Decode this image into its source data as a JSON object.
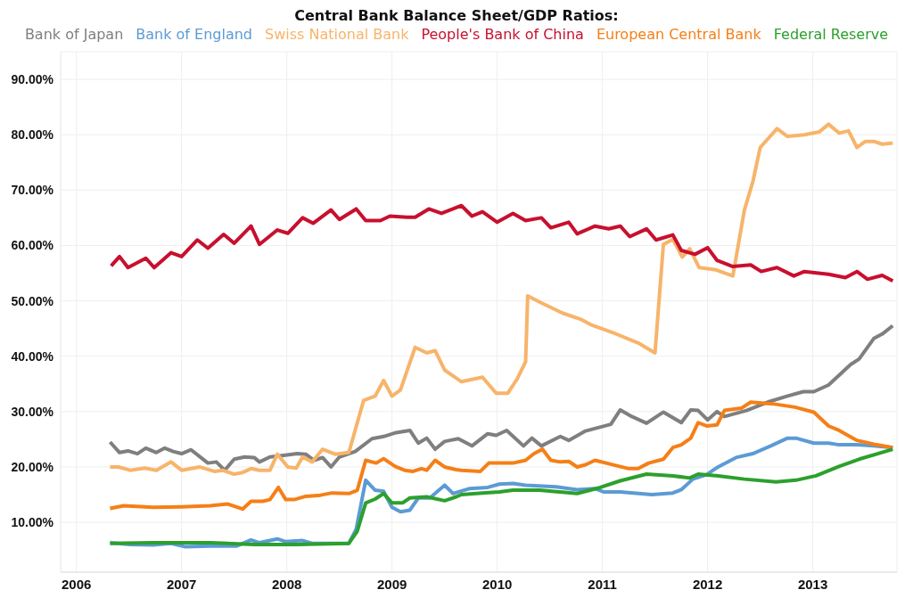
{
  "chart_data": {
    "type": "line",
    "title": "Central Bank Balance Sheet/GDP Ratios:",
    "legend": "top",
    "grid": true,
    "marker": "none",
    "line_style": "solid",
    "xlim": [
      2005.85,
      2013.8
    ],
    "xticks": [
      2006,
      2007,
      2008,
      2009,
      2010,
      2011,
      2012,
      2013
    ],
    "ylim": [
      1,
      95
    ],
    "yticks": [
      {
        "value": 10,
        "label": "10.00%"
      },
      {
        "value": 20,
        "label": "20.00%"
      },
      {
        "value": 30,
        "label": "30.00%"
      },
      {
        "value": 40,
        "label": "40.00%"
      },
      {
        "value": 50,
        "label": "50.00%"
      },
      {
        "value": 60,
        "label": "60.00%"
      },
      {
        "value": 70,
        "label": "70.00%"
      },
      {
        "value": 80,
        "label": "80.00%"
      },
      {
        "value": 90,
        "label": "90.00%"
      }
    ],
    "series": [
      {
        "name": "Bank of Japan",
        "color": "#7f7f7f",
        "x": [
          2006.32,
          2006.41,
          2006.49,
          2006.58,
          2006.66,
          2006.76,
          2006.84,
          2006.92,
          2007.0,
          2007.09,
          2007.25,
          2007.33,
          2007.41,
          2007.5,
          2007.6,
          2007.69,
          2007.74,
          2007.84,
          2007.97,
          2008.1,
          2008.18,
          2008.26,
          2008.34,
          2008.42,
          2008.5,
          2008.65,
          2008.81,
          2008.92,
          2009.04,
          2009.17,
          2009.25,
          2009.33,
          2009.41,
          2009.5,
          2009.63,
          2009.76,
          2009.91,
          2009.99,
          2010.09,
          2010.25,
          2010.33,
          2010.42,
          2010.6,
          2010.68,
          2010.84,
          2011.08,
          2011.17,
          2011.28,
          2011.42,
          2011.58,
          2011.75,
          2011.84,
          2011.91,
          2012.0,
          2012.09,
          2012.16,
          2012.37,
          2012.57,
          2012.76,
          2012.91,
          2013.01,
          2013.15,
          2013.36,
          2013.44,
          2013.58,
          2013.66,
          2013.76
        ],
        "values": [
          24.5,
          22.6,
          22.9,
          22.4,
          23.4,
          22.6,
          23.4,
          22.8,
          22.4,
          23.1,
          20.7,
          20.9,
          19.4,
          21.4,
          21.8,
          21.7,
          20.9,
          21.8,
          22.1,
          22.4,
          22.3,
          21.2,
          21.7,
          20.0,
          21.8,
          22.8,
          25.1,
          25.5,
          26.2,
          26.6,
          24.3,
          25.2,
          23.2,
          24.6,
          25.1,
          23.8,
          26.0,
          25.7,
          26.6,
          23.8,
          25.2,
          23.8,
          25.5,
          24.8,
          26.5,
          27.7,
          30.3,
          29.1,
          27.9,
          29.9,
          28.0,
          30.3,
          30.2,
          28.5,
          30.0,
          29.1,
          30.2,
          31.7,
          32.8,
          33.6,
          33.6,
          34.8,
          38.5,
          39.5,
          43.2,
          44.0,
          45.5
        ]
      },
      {
        "name": "Bank of England",
        "color": "#5b9bd5",
        "x": [
          2006.32,
          2006.51,
          2006.73,
          2006.9,
          2007.03,
          2007.27,
          2007.52,
          2007.66,
          2007.74,
          2007.91,
          2007.99,
          2008.15,
          2008.24,
          2008.38,
          2008.59,
          2008.66,
          2008.75,
          2008.84,
          2008.92,
          2009.0,
          2009.08,
          2009.17,
          2009.25,
          2009.36,
          2009.5,
          2009.58,
          2009.74,
          2009.91,
          2010.02,
          2010.15,
          2010.27,
          2010.56,
          2010.76,
          2010.93,
          2011.01,
          2011.17,
          2011.47,
          2011.67,
          2011.75,
          2011.86,
          2011.99,
          2012.1,
          2012.27,
          2012.43,
          2012.6,
          2012.76,
          2012.84,
          2013.01,
          2013.15,
          2013.25,
          2013.42,
          2013.58,
          2013.76
        ],
        "values": [
          6.3,
          6.0,
          5.9,
          6.2,
          5.6,
          5.7,
          5.7,
          6.8,
          6.3,
          7.0,
          6.5,
          6.7,
          6.2,
          6.2,
          6.2,
          8.8,
          17.6,
          15.8,
          15.6,
          12.7,
          11.9,
          12.2,
          14.4,
          14.4,
          16.7,
          15.2,
          16.1,
          16.3,
          16.9,
          17.0,
          16.7,
          16.4,
          15.9,
          16.1,
          15.5,
          15.5,
          15.0,
          15.3,
          15.9,
          17.8,
          18.6,
          20.0,
          21.7,
          22.4,
          23.8,
          25.2,
          25.2,
          24.3,
          24.3,
          24.0,
          24.0,
          23.8,
          23.5
        ]
      },
      {
        "name": "Swiss National Bank",
        "color": "#f7b46a",
        "x": [
          2006.32,
          2006.4,
          2006.51,
          2006.65,
          2006.76,
          2006.9,
          2007.0,
          2007.17,
          2007.31,
          2007.39,
          2007.5,
          2007.58,
          2007.66,
          2007.74,
          2007.84,
          2007.91,
          2008.01,
          2008.09,
          2008.15,
          2008.24,
          2008.34,
          2008.46,
          2008.59,
          2008.73,
          2008.84,
          2008.92,
          2009.0,
          2009.08,
          2009.22,
          2009.33,
          2009.41,
          2009.5,
          2009.66,
          2009.86,
          2009.99,
          2010.1,
          2010.19,
          2010.27,
          2010.29,
          2010.4,
          2010.62,
          2010.79,
          2010.89,
          2011.12,
          2011.34,
          2011.5,
          2011.58,
          2011.67,
          2011.76,
          2011.83,
          2011.92,
          2012.08,
          2012.24,
          2012.35,
          2012.43,
          2012.5,
          2012.66,
          2012.76,
          2012.92,
          2013.06,
          2013.15,
          2013.25,
          2013.34,
          2013.42,
          2013.5,
          2013.58,
          2013.66,
          2013.76
        ],
        "values": [
          20.0,
          20.0,
          19.4,
          19.8,
          19.4,
          20.9,
          19.4,
          20.0,
          19.2,
          19.4,
          18.7,
          19.0,
          19.7,
          19.4,
          19.4,
          22.3,
          20.0,
          19.8,
          21.8,
          20.9,
          23.2,
          22.3,
          22.6,
          32.0,
          32.8,
          35.6,
          32.8,
          33.9,
          41.6,
          40.6,
          41.0,
          37.5,
          35.4,
          36.2,
          33.3,
          33.3,
          35.9,
          39.0,
          50.9,
          49.8,
          47.8,
          46.7,
          45.7,
          44.1,
          42.4,
          40.6,
          60.2,
          61.1,
          57.9,
          59.4,
          56.0,
          55.6,
          54.5,
          66.4,
          71.5,
          77.7,
          81.1,
          79.7,
          80.0,
          80.5,
          81.9,
          80.3,
          80.7,
          77.7,
          78.8,
          78.8,
          78.3,
          78.5
        ]
      },
      {
        "name": "People's Bank of China",
        "color": "#c8102e",
        "x": [
          2006.33,
          2006.41,
          2006.49,
          2006.66,
          2006.74,
          2006.9,
          2007.0,
          2007.15,
          2007.25,
          2007.4,
          2007.5,
          2007.66,
          2007.74,
          2007.91,
          2008.01,
          2008.15,
          2008.25,
          2008.42,
          2008.5,
          2008.66,
          2008.75,
          2008.89,
          2008.98,
          2009.14,
          2009.22,
          2009.35,
          2009.47,
          2009.66,
          2009.76,
          2009.86,
          2010.0,
          2010.15,
          2010.27,
          2010.42,
          2010.51,
          2010.68,
          2010.76,
          2010.93,
          2011.06,
          2011.17,
          2011.26,
          2011.42,
          2011.51,
          2011.67,
          2011.75,
          2011.88,
          2012.0,
          2012.09,
          2012.24,
          2012.41,
          2012.51,
          2012.66,
          2012.82,
          2012.92,
          2013.15,
          2013.31,
          2013.42,
          2013.52,
          2013.66,
          2013.76
        ],
        "values": [
          56.3,
          58.0,
          56.0,
          57.7,
          56.0,
          58.7,
          58.0,
          61.0,
          59.5,
          62.0,
          60.4,
          63.5,
          60.2,
          62.8,
          62.2,
          65.0,
          64.0,
          66.4,
          64.7,
          66.6,
          64.5,
          64.5,
          65.3,
          65.1,
          65.1,
          66.6,
          65.8,
          67.2,
          65.3,
          66.1,
          64.2,
          65.8,
          64.5,
          65.0,
          63.2,
          64.2,
          62.1,
          63.5,
          63.0,
          63.5,
          61.6,
          63.0,
          61.0,
          61.9,
          59.1,
          58.4,
          59.6,
          57.3,
          56.2,
          56.5,
          55.3,
          56.0,
          54.5,
          55.3,
          54.8,
          54.2,
          55.3,
          53.9,
          54.6,
          53.6
        ]
      },
      {
        "name": "European Central Bank",
        "color": "#f57f17",
        "x": [
          2006.32,
          2006.45,
          2006.73,
          2007.0,
          2007.27,
          2007.44,
          2007.58,
          2007.66,
          2007.77,
          2007.84,
          2007.92,
          2007.99,
          2008.07,
          2008.18,
          2008.32,
          2008.43,
          2008.59,
          2008.67,
          2008.75,
          2008.85,
          2008.92,
          2009.03,
          2009.12,
          2009.2,
          2009.28,
          2009.33,
          2009.41,
          2009.5,
          2009.61,
          2009.66,
          2009.84,
          2009.92,
          2010.15,
          2010.27,
          2010.35,
          2010.43,
          2010.51,
          2010.6,
          2010.68,
          2010.76,
          2010.84,
          2010.93,
          2011.12,
          2011.25,
          2011.34,
          2011.44,
          2011.58,
          2011.67,
          2011.75,
          2011.84,
          2011.91,
          2011.99,
          2012.09,
          2012.16,
          2012.32,
          2012.41,
          2012.62,
          2012.83,
          2013.01,
          2013.15,
          2013.25,
          2013.42,
          2013.58,
          2013.76
        ],
        "values": [
          12.5,
          13.0,
          12.7,
          12.8,
          13.0,
          13.3,
          12.4,
          13.8,
          13.8,
          14.1,
          16.3,
          14.1,
          14.1,
          14.7,
          14.9,
          15.3,
          15.2,
          15.8,
          21.2,
          20.7,
          21.5,
          20.1,
          19.4,
          19.2,
          19.7,
          19.4,
          21.2,
          20.0,
          19.5,
          19.4,
          19.2,
          20.7,
          20.7,
          21.2,
          22.4,
          23.2,
          21.2,
          20.9,
          21.0,
          20.0,
          20.4,
          21.2,
          20.3,
          19.7,
          19.7,
          20.7,
          21.4,
          23.5,
          24.0,
          25.2,
          28.0,
          27.4,
          27.6,
          30.2,
          30.6,
          31.7,
          31.4,
          30.8,
          29.9,
          27.4,
          26.6,
          24.8,
          24.1,
          23.5
        ]
      },
      {
        "name": "Federal Reserve",
        "color": "#2ca02c",
        "x": [
          2006.32,
          2006.73,
          2007.27,
          2007.69,
          2008.1,
          2008.59,
          2008.67,
          2008.75,
          2008.84,
          2008.92,
          2009.0,
          2009.1,
          2009.17,
          2009.33,
          2009.5,
          2009.61,
          2009.66,
          2009.86,
          2010.02,
          2010.15,
          2010.4,
          2010.76,
          2010.98,
          2011.17,
          2011.42,
          2011.67,
          2011.83,
          2011.91,
          2012.1,
          2012.35,
          2012.65,
          2012.84,
          2013.03,
          2013.25,
          2013.44,
          2013.76
        ],
        "values": [
          6.2,
          6.3,
          6.3,
          6.0,
          6.0,
          6.2,
          8.4,
          13.5,
          14.2,
          15.2,
          13.5,
          13.5,
          14.4,
          14.6,
          13.9,
          14.6,
          15.0,
          15.3,
          15.5,
          15.8,
          15.8,
          15.2,
          16.3,
          17.5,
          18.7,
          18.4,
          18.0,
          18.7,
          18.4,
          17.8,
          17.3,
          17.6,
          18.4,
          20.1,
          21.4,
          23.2
        ]
      }
    ]
  }
}
